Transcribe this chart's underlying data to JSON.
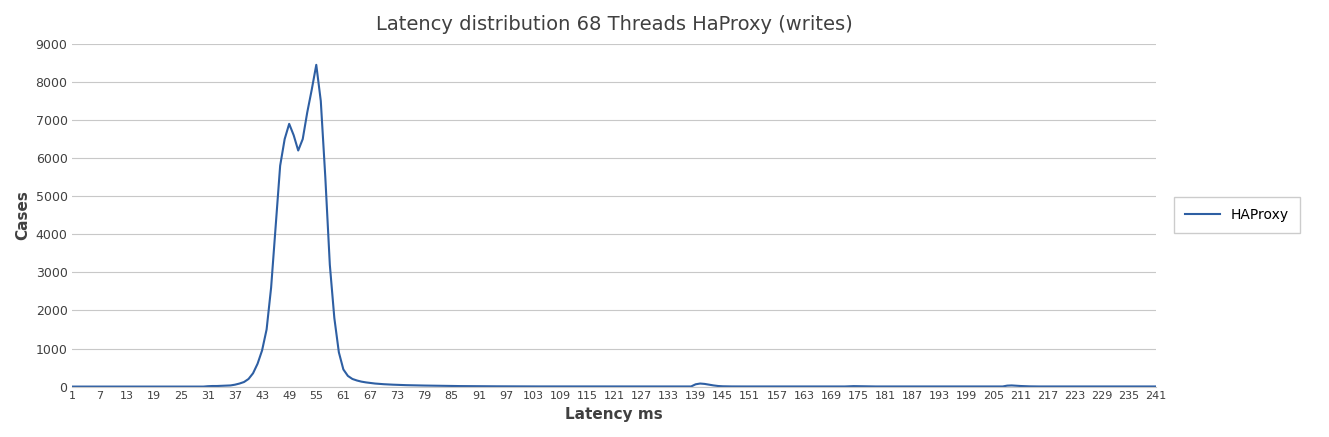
{
  "title": "Latency distribution 68 Threads HaProxy (writes)",
  "xlabel": "Latency ms",
  "ylabel": "Cases",
  "legend_label": "HAProxy",
  "line_color": "#2e5fa3",
  "background_color": "#ffffff",
  "grid_color": "#c8c8c8",
  "ylim": [
    0,
    9000
  ],
  "yticks": [
    0,
    1000,
    2000,
    3000,
    4000,
    5000,
    6000,
    7000,
    8000,
    9000
  ],
  "x_labels": [
    "1",
    "7",
    "13",
    "19",
    "25",
    "31",
    "37",
    "43",
    "49",
    "55",
    "61",
    "67",
    "73",
    "79",
    "85",
    "91",
    "97",
    "103",
    "109",
    "115",
    "121",
    "127",
    "133",
    "139",
    "145",
    "151",
    "157",
    "163",
    "169",
    "175",
    "181",
    "187",
    "193",
    "199",
    "205",
    "211",
    "217",
    "223",
    "229",
    "235",
    "241"
  ],
  "data": [
    [
      1,
      0
    ],
    [
      2,
      0
    ],
    [
      3,
      0
    ],
    [
      4,
      0
    ],
    [
      5,
      0
    ],
    [
      6,
      0
    ],
    [
      7,
      0
    ],
    [
      8,
      0
    ],
    [
      9,
      0
    ],
    [
      10,
      0
    ],
    [
      11,
      0
    ],
    [
      12,
      0
    ],
    [
      13,
      0
    ],
    [
      14,
      0
    ],
    [
      15,
      0
    ],
    [
      16,
      0
    ],
    [
      17,
      0
    ],
    [
      18,
      0
    ],
    [
      19,
      0
    ],
    [
      20,
      0
    ],
    [
      21,
      0
    ],
    [
      22,
      0
    ],
    [
      23,
      0
    ],
    [
      24,
      0
    ],
    [
      25,
      0
    ],
    [
      26,
      0
    ],
    [
      27,
      0
    ],
    [
      28,
      0
    ],
    [
      29,
      0
    ],
    [
      30,
      0
    ],
    [
      31,
      10
    ],
    [
      32,
      15
    ],
    [
      33,
      15
    ],
    [
      34,
      20
    ],
    [
      35,
      25
    ],
    [
      36,
      30
    ],
    [
      37,
      50
    ],
    [
      38,
      80
    ],
    [
      39,
      120
    ],
    [
      40,
      200
    ],
    [
      41,
      350
    ],
    [
      42,
      600
    ],
    [
      43,
      950
    ],
    [
      44,
      1500
    ],
    [
      45,
      2600
    ],
    [
      46,
      4200
    ],
    [
      47,
      5800
    ],
    [
      48,
      6500
    ],
    [
      49,
      6900
    ],
    [
      50,
      6600
    ],
    [
      51,
      6200
    ],
    [
      52,
      6500
    ],
    [
      53,
      7200
    ],
    [
      54,
      7800
    ],
    [
      55,
      8450
    ],
    [
      56,
      7500
    ],
    [
      57,
      5500
    ],
    [
      58,
      3200
    ],
    [
      59,
      1800
    ],
    [
      60,
      900
    ],
    [
      61,
      450
    ],
    [
      62,
      280
    ],
    [
      63,
      200
    ],
    [
      64,
      160
    ],
    [
      65,
      130
    ],
    [
      66,
      110
    ],
    [
      67,
      95
    ],
    [
      68,
      80
    ],
    [
      69,
      70
    ],
    [
      70,
      62
    ],
    [
      71,
      55
    ],
    [
      72,
      50
    ],
    [
      73,
      45
    ],
    [
      74,
      40
    ],
    [
      75,
      37
    ],
    [
      76,
      34
    ],
    [
      77,
      31
    ],
    [
      78,
      29
    ],
    [
      79,
      27
    ],
    [
      80,
      25
    ],
    [
      81,
      23
    ],
    [
      82,
      21
    ],
    [
      83,
      19
    ],
    [
      84,
      17
    ],
    [
      85,
      16
    ],
    [
      86,
      14
    ],
    [
      87,
      13
    ],
    [
      88,
      12
    ],
    [
      89,
      11
    ],
    [
      90,
      10
    ],
    [
      91,
      10
    ],
    [
      92,
      9
    ],
    [
      93,
      8
    ],
    [
      94,
      8
    ],
    [
      95,
      7
    ],
    [
      96,
      7
    ],
    [
      97,
      6
    ],
    [
      98,
      6
    ],
    [
      99,
      5
    ],
    [
      100,
      5
    ],
    [
      101,
      5
    ],
    [
      102,
      4
    ],
    [
      103,
      4
    ],
    [
      104,
      4
    ],
    [
      105,
      4
    ],
    [
      106,
      3
    ],
    [
      107,
      3
    ],
    [
      108,
      3
    ],
    [
      109,
      3
    ],
    [
      110,
      3
    ],
    [
      111,
      3
    ],
    [
      112,
      3
    ],
    [
      113,
      3
    ],
    [
      114,
      3
    ],
    [
      115,
      3
    ],
    [
      116,
      3
    ],
    [
      117,
      3
    ],
    [
      118,
      3
    ],
    [
      119,
      3
    ],
    [
      120,
      3
    ],
    [
      121,
      3
    ],
    [
      122,
      3
    ],
    [
      123,
      3
    ],
    [
      124,
      3
    ],
    [
      125,
      3
    ],
    [
      126,
      3
    ],
    [
      127,
      3
    ],
    [
      128,
      3
    ],
    [
      129,
      3
    ],
    [
      130,
      3
    ],
    [
      131,
      3
    ],
    [
      132,
      3
    ],
    [
      133,
      3
    ],
    [
      134,
      3
    ],
    [
      135,
      3
    ],
    [
      136,
      3
    ],
    [
      137,
      3
    ],
    [
      138,
      3
    ],
    [
      139,
      60
    ],
    [
      140,
      80
    ],
    [
      141,
      70
    ],
    [
      142,
      50
    ],
    [
      143,
      30
    ],
    [
      144,
      15
    ],
    [
      145,
      8
    ],
    [
      146,
      5
    ],
    [
      147,
      4
    ],
    [
      148,
      3
    ],
    [
      149,
      3
    ],
    [
      150,
      3
    ],
    [
      151,
      3
    ],
    [
      152,
      3
    ],
    [
      153,
      3
    ],
    [
      154,
      3
    ],
    [
      155,
      3
    ],
    [
      156,
      3
    ],
    [
      157,
      3
    ],
    [
      158,
      3
    ],
    [
      159,
      3
    ],
    [
      160,
      3
    ],
    [
      161,
      3
    ],
    [
      162,
      3
    ],
    [
      163,
      3
    ],
    [
      164,
      3
    ],
    [
      165,
      3
    ],
    [
      166,
      3
    ],
    [
      167,
      3
    ],
    [
      168,
      3
    ],
    [
      169,
      3
    ],
    [
      170,
      3
    ],
    [
      171,
      3
    ],
    [
      172,
      3
    ],
    [
      173,
      8
    ],
    [
      174,
      12
    ],
    [
      175,
      10
    ],
    [
      176,
      7
    ],
    [
      177,
      5
    ],
    [
      178,
      3
    ],
    [
      179,
      3
    ],
    [
      180,
      3
    ],
    [
      181,
      3
    ],
    [
      182,
      3
    ],
    [
      183,
      3
    ],
    [
      184,
      3
    ],
    [
      185,
      3
    ],
    [
      186,
      3
    ],
    [
      187,
      3
    ],
    [
      188,
      3
    ],
    [
      189,
      3
    ],
    [
      190,
      3
    ],
    [
      191,
      3
    ],
    [
      192,
      3
    ],
    [
      193,
      3
    ],
    [
      194,
      3
    ],
    [
      195,
      3
    ],
    [
      196,
      3
    ],
    [
      197,
      3
    ],
    [
      198,
      3
    ],
    [
      199,
      3
    ],
    [
      200,
      3
    ],
    [
      201,
      3
    ],
    [
      202,
      3
    ],
    [
      203,
      3
    ],
    [
      204,
      3
    ],
    [
      205,
      3
    ],
    [
      206,
      3
    ],
    [
      207,
      3
    ],
    [
      208,
      25
    ],
    [
      209,
      30
    ],
    [
      210,
      22
    ],
    [
      211,
      15
    ],
    [
      212,
      10
    ],
    [
      213,
      6
    ],
    [
      214,
      4
    ],
    [
      215,
      3
    ],
    [
      216,
      3
    ],
    [
      217,
      3
    ],
    [
      218,
      3
    ],
    [
      219,
      3
    ],
    [
      220,
      3
    ],
    [
      221,
      3
    ],
    [
      222,
      3
    ],
    [
      223,
      3
    ],
    [
      224,
      3
    ],
    [
      225,
      3
    ],
    [
      226,
      3
    ],
    [
      227,
      3
    ],
    [
      228,
      3
    ],
    [
      229,
      3
    ],
    [
      230,
      3
    ],
    [
      231,
      3
    ],
    [
      232,
      3
    ],
    [
      233,
      3
    ],
    [
      234,
      3
    ],
    [
      235,
      3
    ],
    [
      236,
      3
    ],
    [
      237,
      3
    ],
    [
      238,
      3
    ],
    [
      239,
      3
    ],
    [
      240,
      3
    ],
    [
      241,
      3
    ]
  ]
}
